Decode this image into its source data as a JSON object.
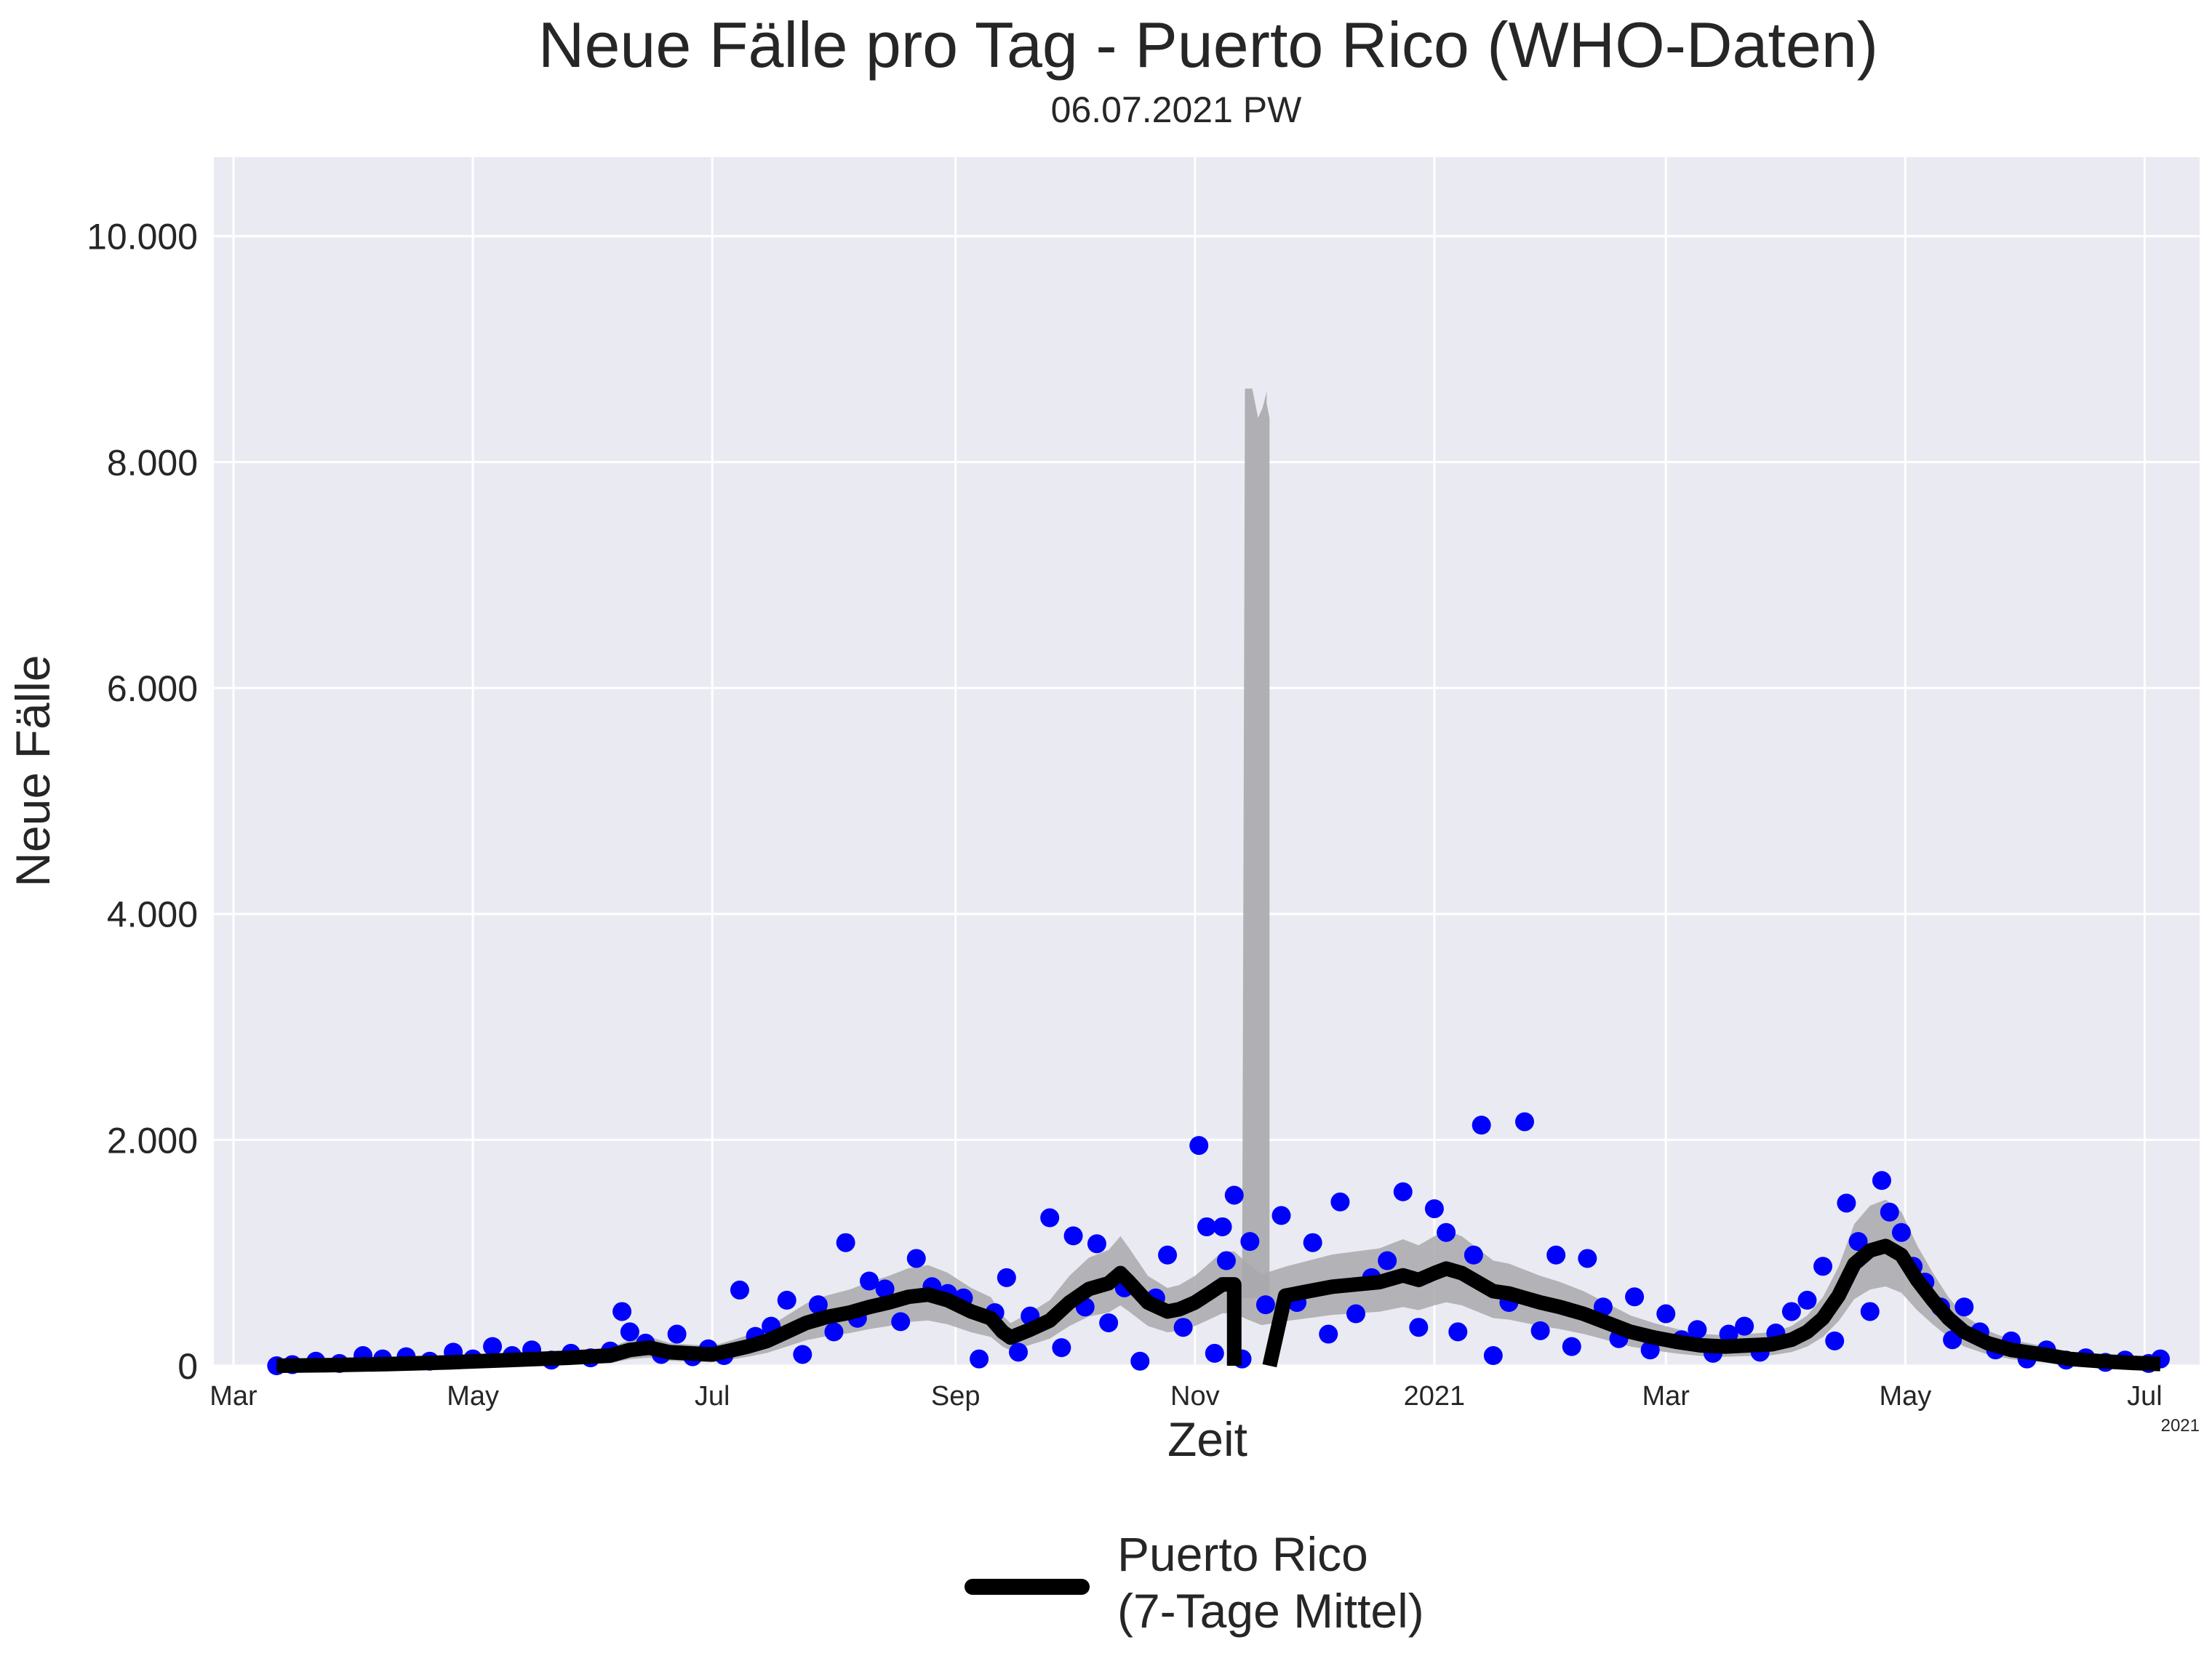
{
  "chart_data": {
    "type": "line",
    "title": "Neue Fälle pro Tag - Puerto Rico (WHO-Daten)",
    "subtitle": "06.07.2021 PW",
    "xlabel": "Zeit",
    "ylabel": "Neue Fälle",
    "x_range": [
      "2020-02-25",
      "2021-07-15"
    ],
    "ylim": [
      0,
      10700
    ],
    "yticks": [
      0,
      2000,
      4000,
      6000,
      8000,
      10000
    ],
    "ytick_labels": [
      "0",
      "2.000",
      "4.000",
      "6.000",
      "8.000",
      "10.000"
    ],
    "xticks": [
      {
        "date": "2020-03-01",
        "label": "Mar"
      },
      {
        "date": "2020-05-01",
        "label": "May"
      },
      {
        "date": "2020-07-01",
        "label": "Jul"
      },
      {
        "date": "2020-09-01",
        "label": "Sep"
      },
      {
        "date": "2020-11-01",
        "label": "Nov"
      },
      {
        "date": "2021-01-01",
        "label": "2021"
      },
      {
        "date": "2021-03-01",
        "label": "Mar"
      },
      {
        "date": "2021-05-01",
        "label": "May"
      },
      {
        "date": "2021-07-01",
        "label": "Jul"
      }
    ],
    "x_offset_label": "2021",
    "grid": true,
    "legend_position": "bottom-center",
    "colors": {
      "plot_background": "#eaeaf2",
      "grid": "#ffffff",
      "mean_line": "#000000",
      "daily_points": "#0000ff",
      "band": "#a9a9ad"
    },
    "legend": [
      {
        "label_line1": "Puerto Rico",
        "label_line2": "(7-Tage Mittel)"
      }
    ],
    "series": [
      {
        "name": "Puerto Rico (7-Tage Mittel)",
        "points": [
          [
            "2020-03-12",
            0
          ],
          [
            "2020-03-25",
            5
          ],
          [
            "2020-04-10",
            15
          ],
          [
            "2020-04-25",
            30
          ],
          [
            "2020-05-10",
            50
          ],
          [
            "2020-05-25",
            70
          ],
          [
            "2020-06-05",
            90
          ],
          [
            "2020-06-10",
            140
          ],
          [
            "2020-06-15",
            160
          ],
          [
            "2020-06-20",
            120
          ],
          [
            "2020-06-25",
            110
          ],
          [
            "2020-07-01",
            100
          ],
          [
            "2020-07-05",
            130
          ],
          [
            "2020-07-10",
            170
          ],
          [
            "2020-07-15",
            220
          ],
          [
            "2020-07-20",
            300
          ],
          [
            "2020-07-25",
            380
          ],
          [
            "2020-07-30",
            430
          ],
          [
            "2020-08-05",
            470
          ],
          [
            "2020-08-10",
            520
          ],
          [
            "2020-08-15",
            560
          ],
          [
            "2020-08-20",
            610
          ],
          [
            "2020-08-25",
            630
          ],
          [
            "2020-08-30",
            580
          ],
          [
            "2020-09-05",
            480
          ],
          [
            "2020-09-10",
            420
          ],
          [
            "2020-09-13",
            300
          ],
          [
            "2020-09-15",
            250
          ],
          [
            "2020-09-20",
            320
          ],
          [
            "2020-09-25",
            400
          ],
          [
            "2020-09-30",
            560
          ],
          [
            "2020-10-05",
            680
          ],
          [
            "2020-10-10",
            730
          ],
          [
            "2020-10-13",
            820
          ],
          [
            "2020-10-15",
            750
          ],
          [
            "2020-10-20",
            560
          ],
          [
            "2020-10-25",
            480
          ],
          [
            "2020-10-28",
            500
          ],
          [
            "2020-11-01",
            560
          ],
          [
            "2020-11-05",
            650
          ],
          [
            "2020-11-08",
            720
          ],
          [
            "2020-11-11",
            720
          ],
          [
            "2020-11-14",
            650
          ],
          [
            "2020-11-18",
            570
          ],
          [
            "2020-11-24",
            620
          ],
          [
            "2020-11-30",
            660
          ],
          [
            "2020-12-06",
            700
          ],
          [
            "2020-12-12",
            720
          ],
          [
            "2020-12-18",
            740
          ],
          [
            "2020-12-24",
            800
          ],
          [
            "2020-12-28",
            760
          ],
          [
            "2021-01-01",
            820
          ],
          [
            "2021-01-04",
            860
          ],
          [
            "2021-01-08",
            820
          ],
          [
            "2021-01-12",
            740
          ],
          [
            "2021-01-16",
            660
          ],
          [
            "2021-01-20",
            640
          ],
          [
            "2021-01-24",
            600
          ],
          [
            "2021-01-28",
            560
          ],
          [
            "2021-02-02",
            520
          ],
          [
            "2021-02-08",
            460
          ],
          [
            "2021-02-14",
            380
          ],
          [
            "2021-02-20",
            300
          ],
          [
            "2021-02-26",
            250
          ],
          [
            "2021-03-04",
            210
          ],
          [
            "2021-03-10",
            180
          ],
          [
            "2021-03-16",
            170
          ],
          [
            "2021-03-22",
            180
          ],
          [
            "2021-03-28",
            190
          ],
          [
            "2021-04-02",
            230
          ],
          [
            "2021-04-06",
            300
          ],
          [
            "2021-04-10",
            420
          ],
          [
            "2021-04-14",
            620
          ],
          [
            "2021-04-18",
            900
          ],
          [
            "2021-04-22",
            1020
          ],
          [
            "2021-04-26",
            1060
          ],
          [
            "2021-04-30",
            980
          ],
          [
            "2021-05-04",
            760
          ],
          [
            "2021-05-08",
            580
          ],
          [
            "2021-05-12",
            420
          ],
          [
            "2021-05-16",
            300
          ],
          [
            "2021-05-22",
            200
          ],
          [
            "2021-05-28",
            140
          ],
          [
            "2021-06-05",
            100
          ],
          [
            "2021-06-12",
            60
          ],
          [
            "2021-06-20",
            40
          ],
          [
            "2021-06-28",
            25
          ],
          [
            "2021-07-05",
            15
          ]
        ],
        "gap": {
          "from": "2020-11-11",
          "to": "2020-11-20",
          "min": 0
        }
      }
    ],
    "band": {
      "name": "",
      "spike": {
        "from": "2020-11-13",
        "to": "2020-11-20",
        "peak": 8650
      }
    },
    "daily_points": [
      [
        "2020-03-12",
        0
      ],
      [
        "2020-03-16",
        10
      ],
      [
        "2020-03-22",
        40
      ],
      [
        "2020-03-28",
        20
      ],
      [
        "2020-04-03",
        90
      ],
      [
        "2020-04-08",
        60
      ],
      [
        "2020-04-14",
        80
      ],
      [
        "2020-04-20",
        40
      ],
      [
        "2020-04-26",
        120
      ],
      [
        "2020-05-01",
        60
      ],
      [
        "2020-05-06",
        170
      ],
      [
        "2020-05-11",
        90
      ],
      [
        "2020-05-16",
        140
      ],
      [
        "2020-05-21",
        50
      ],
      [
        "2020-05-26",
        110
      ],
      [
        "2020-05-31",
        70
      ],
      [
        "2020-06-05",
        130
      ],
      [
        "2020-06-08",
        480
      ],
      [
        "2020-06-10",
        300
      ],
      [
        "2020-06-14",
        200
      ],
      [
        "2020-06-18",
        100
      ],
      [
        "2020-06-22",
        280
      ],
      [
        "2020-06-26",
        80
      ],
      [
        "2020-06-30",
        150
      ],
      [
        "2020-07-04",
        90
      ],
      [
        "2020-07-08",
        670
      ],
      [
        "2020-07-12",
        260
      ],
      [
        "2020-07-16",
        350
      ],
      [
        "2020-07-20",
        580
      ],
      [
        "2020-07-24",
        100
      ],
      [
        "2020-07-28",
        540
      ],
      [
        "2020-08-01",
        300
      ],
      [
        "2020-08-04",
        1090
      ],
      [
        "2020-08-07",
        420
      ],
      [
        "2020-08-10",
        750
      ],
      [
        "2020-08-14",
        680
      ],
      [
        "2020-08-18",
        390
      ],
      [
        "2020-08-22",
        950
      ],
      [
        "2020-08-26",
        700
      ],
      [
        "2020-08-30",
        640
      ],
      [
        "2020-09-03",
        600
      ],
      [
        "2020-09-07",
        60
      ],
      [
        "2020-09-11",
        470
      ],
      [
        "2020-09-14",
        780
      ],
      [
        "2020-09-17",
        120
      ],
      [
        "2020-09-20",
        440
      ],
      [
        "2020-09-25",
        1310
      ],
      [
        "2020-09-28",
        160
      ],
      [
        "2020-10-01",
        1150
      ],
      [
        "2020-10-04",
        520
      ],
      [
        "2020-10-07",
        1080
      ],
      [
        "2020-10-10",
        380
      ],
      [
        "2020-10-14",
        690
      ],
      [
        "2020-10-18",
        40
      ],
      [
        "2020-10-22",
        600
      ],
      [
        "2020-10-25",
        980
      ],
      [
        "2020-10-29",
        340
      ],
      [
        "2020-11-02",
        1950
      ],
      [
        "2020-11-04",
        1230
      ],
      [
        "2020-11-06",
        110
      ],
      [
        "2020-11-08",
        1230
      ],
      [
        "2020-11-09",
        930
      ],
      [
        "2020-11-11",
        1510
      ],
      [
        "2020-11-13",
        60
      ],
      [
        "2020-11-15",
        1100
      ],
      [
        "2020-11-19",
        540
      ],
      [
        "2020-11-23",
        1330
      ],
      [
        "2020-11-27",
        560
      ],
      [
        "2020-12-01",
        1090
      ],
      [
        "2020-12-05",
        280
      ],
      [
        "2020-12-08",
        1450
      ],
      [
        "2020-12-12",
        460
      ],
      [
        "2020-12-16",
        780
      ],
      [
        "2020-12-20",
        930
      ],
      [
        "2020-12-24",
        1540
      ],
      [
        "2020-12-28",
        340
      ],
      [
        "2021-01-01",
        1390
      ],
      [
        "2021-01-04",
        1180
      ],
      [
        "2021-01-07",
        300
      ],
      [
        "2021-01-11",
        980
      ],
      [
        "2021-01-13",
        2130
      ],
      [
        "2021-01-16",
        90
      ],
      [
        "2021-01-20",
        560
      ],
      [
        "2021-01-24",
        2160
      ],
      [
        "2021-01-28",
        310
      ],
      [
        "2021-02-01",
        980
      ],
      [
        "2021-02-05",
        170
      ],
      [
        "2021-02-09",
        950
      ],
      [
        "2021-02-13",
        520
      ],
      [
        "2021-02-17",
        240
      ],
      [
        "2021-02-21",
        610
      ],
      [
        "2021-02-25",
        140
      ],
      [
        "2021-03-01",
        460
      ],
      [
        "2021-03-05",
        230
      ],
      [
        "2021-03-09",
        320
      ],
      [
        "2021-03-13",
        110
      ],
      [
        "2021-03-17",
        280
      ],
      [
        "2021-03-21",
        350
      ],
      [
        "2021-03-25",
        120
      ],
      [
        "2021-03-29",
        290
      ],
      [
        "2021-04-02",
        480
      ],
      [
        "2021-04-06",
        580
      ],
      [
        "2021-04-10",
        880
      ],
      [
        "2021-04-13",
        220
      ],
      [
        "2021-04-16",
        1440
      ],
      [
        "2021-04-19",
        1100
      ],
      [
        "2021-04-22",
        480
      ],
      [
        "2021-04-25",
        1640
      ],
      [
        "2021-04-27",
        1360
      ],
      [
        "2021-04-30",
        1180
      ],
      [
        "2021-05-03",
        880
      ],
      [
        "2021-05-06",
        740
      ],
      [
        "2021-05-10",
        520
      ],
      [
        "2021-05-13",
        230
      ],
      [
        "2021-05-16",
        520
      ],
      [
        "2021-05-20",
        300
      ],
      [
        "2021-05-24",
        140
      ],
      [
        "2021-05-28",
        220
      ],
      [
        "2021-06-01",
        60
      ],
      [
        "2021-06-06",
        140
      ],
      [
        "2021-06-11",
        50
      ],
      [
        "2021-06-16",
        70
      ],
      [
        "2021-06-21",
        30
      ],
      [
        "2021-06-26",
        50
      ],
      [
        "2021-07-02",
        20
      ],
      [
        "2021-07-05",
        60
      ]
    ]
  }
}
